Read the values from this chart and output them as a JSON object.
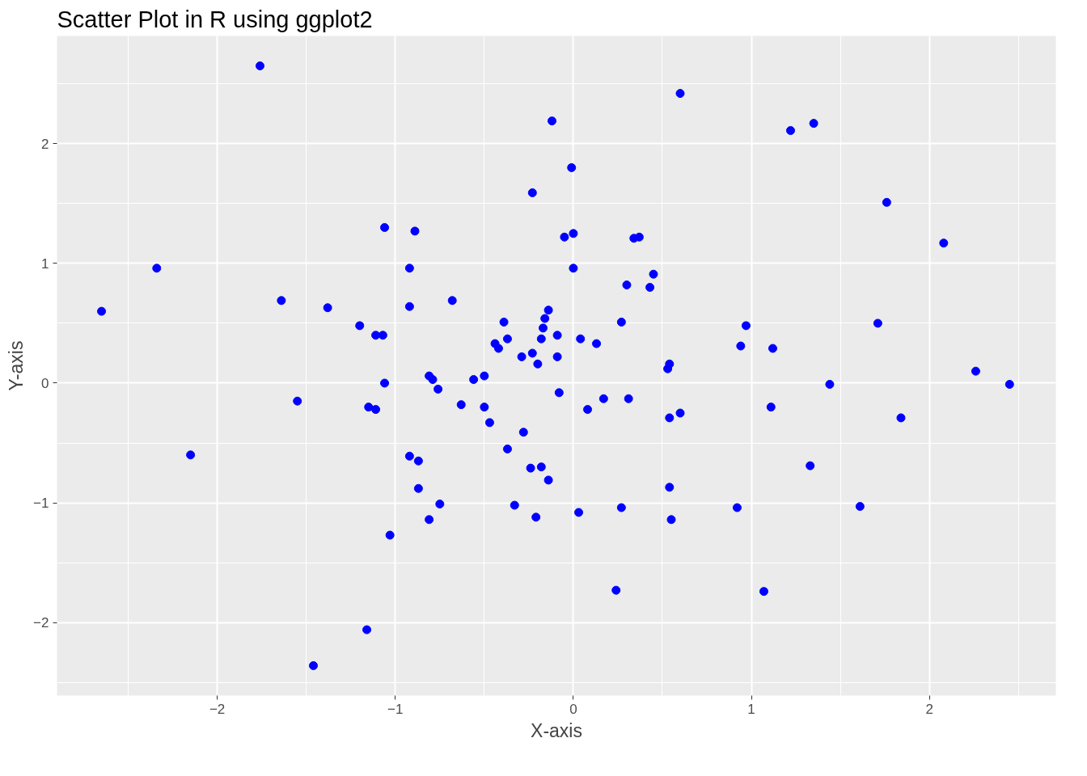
{
  "chart_data": {
    "type": "scatter",
    "title": "Scatter Plot in R using ggplot2",
    "xlabel": "X-axis",
    "ylabel": "Y-axis",
    "xlim": [
      -2.9,
      2.71
    ],
    "ylim": [
      -2.61,
      2.9
    ],
    "xticks": [
      -2,
      -1,
      0,
      1,
      2
    ],
    "yticks": [
      -2,
      -1,
      0,
      1,
      2
    ],
    "grid": true,
    "marker": "circle",
    "series": [
      {
        "color": "#0000ff",
        "x": [
          -1.76,
          0.6,
          -0.12,
          1.22,
          1.35,
          -0.01,
          -0.23,
          1.76,
          2.08,
          -1.06,
          -0.89,
          -0.05,
          0.0,
          0.34,
          0.37,
          -2.34,
          -0.92,
          0.0,
          0.45,
          0.3,
          0.43,
          -2.65,
          -1.64,
          -0.68,
          -1.38,
          -0.92,
          -0.14,
          -1.2,
          -1.11,
          -1.07,
          -0.39,
          -0.16,
          -0.17,
          0.27,
          0.97,
          1.71,
          -0.44,
          -0.42,
          -0.37,
          -0.09,
          -0.18,
          0.04,
          0.13,
          0.94,
          1.12,
          -0.29,
          -0.23,
          -0.2,
          -0.09,
          0.54,
          0.53,
          2.26,
          -0.81,
          -0.79,
          -0.56,
          -0.5,
          -1.06,
          -0.76,
          -0.08,
          1.44,
          2.45,
          -1.55,
          -1.15,
          -1.11,
          -0.63,
          -0.5,
          0.17,
          0.31,
          0.08,
          1.11,
          -0.47,
          0.54,
          0.6,
          1.84,
          -0.28,
          -0.37,
          -2.15,
          -0.92,
          -0.87,
          1.33,
          -0.24,
          -0.18,
          -0.14,
          -0.87,
          0.54,
          -0.75,
          -0.33,
          0.27,
          0.92,
          1.61,
          0.03,
          -0.21,
          -0.81,
          0.55,
          -1.03,
          0.24,
          1.07,
          -1.16,
          -1.46
        ],
        "values": [
          2.65,
          2.42,
          2.19,
          2.11,
          2.17,
          1.8,
          1.59,
          1.51,
          1.17,
          1.3,
          1.27,
          1.22,
          1.25,
          1.21,
          1.22,
          0.96,
          0.96,
          0.96,
          0.91,
          0.82,
          0.8,
          0.6,
          0.69,
          0.69,
          0.63,
          0.64,
          0.61,
          0.48,
          0.4,
          0.4,
          0.51,
          0.54,
          0.46,
          0.51,
          0.48,
          0.5,
          0.33,
          0.29,
          0.37,
          0.4,
          0.37,
          0.37,
          0.33,
          0.31,
          0.29,
          0.22,
          0.25,
          0.16,
          0.22,
          0.16,
          0.12,
          0.1,
          0.06,
          0.03,
          0.03,
          0.06,
          0.0,
          -0.05,
          -0.08,
          -0.01,
          -0.01,
          -0.15,
          -0.2,
          -0.22,
          -0.18,
          -0.2,
          -0.13,
          -0.13,
          -0.22,
          -0.2,
          -0.33,
          -0.29,
          -0.25,
          -0.29,
          -0.41,
          -0.55,
          -0.6,
          -0.61,
          -0.65,
          -0.69,
          -0.71,
          -0.7,
          -0.81,
          -0.88,
          -0.87,
          -1.01,
          -1.02,
          -1.04,
          -1.04,
          -1.03,
          -1.08,
          -1.12,
          -1.14,
          -1.14,
          -1.27,
          -1.73,
          -1.74,
          -2.06,
          -2.36
        ]
      }
    ]
  }
}
